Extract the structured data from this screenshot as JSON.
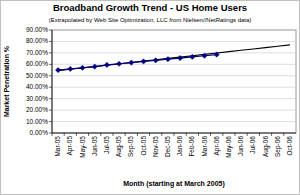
{
  "chart_data": {
    "type": "line",
    "title": "Broadband Growth Trend - US Home Users",
    "subtitle": "(Extrapolated by Web Site Optimization, LLC from Nielsen//NetRatings data)",
    "x_label": "Month (starting at March 2005)",
    "y_label": "Market Penetration %",
    "categories": [
      "Mar-05",
      "Apr-05",
      "May-05",
      "Jun-05",
      "Jul-05",
      "Aug-05",
      "Sep-05",
      "Oct-05",
      "Nov-05",
      "Dec-05",
      "Jan-06",
      "Feb-06",
      "Mar-06",
      "Apr-06",
      "May-06",
      "Jun-06",
      "Jul-06",
      "Aug-06",
      "Sep-06",
      "Oct-06"
    ],
    "series": [
      {
        "color": "#000080",
        "marker": "diamond",
        "line_style": "solid",
        "values": [
          55.0,
          56.0,
          57.0,
          58.0,
          59.5,
          60.5,
          61.5,
          62.5,
          63.5,
          64.5,
          65.5,
          66.5,
          67.5,
          68.5,
          null,
          null,
          null,
          null,
          null,
          null
        ]
      },
      {
        "color": "#000000",
        "marker": "none",
        "line_style": "solid",
        "values": [
          54.5,
          55.7,
          56.9,
          58.0,
          59.2,
          60.4,
          61.6,
          62.8,
          64.0,
          65.2,
          66.3,
          67.5,
          68.7,
          69.9,
          71.1,
          72.3,
          73.4,
          74.6,
          75.8,
          77.0
        ]
      }
    ],
    "ylim": [
      0,
      90
    ],
    "yticks": [
      {
        "value": 0,
        "label": "0.00%"
      },
      {
        "value": 10,
        "label": "10.00%"
      },
      {
        "value": 20,
        "label": "20.00%"
      },
      {
        "value": 30,
        "label": "30.00%"
      },
      {
        "value": 40,
        "label": "40.00%"
      },
      {
        "value": 50,
        "label": "50.00%"
      },
      {
        "value": 60,
        "label": "60.00%"
      },
      {
        "value": 70,
        "label": "70.00%"
      },
      {
        "value": 80,
        "label": "80.00%"
      },
      {
        "value": 90,
        "label": "90.00%"
      }
    ],
    "grid": true
  }
}
